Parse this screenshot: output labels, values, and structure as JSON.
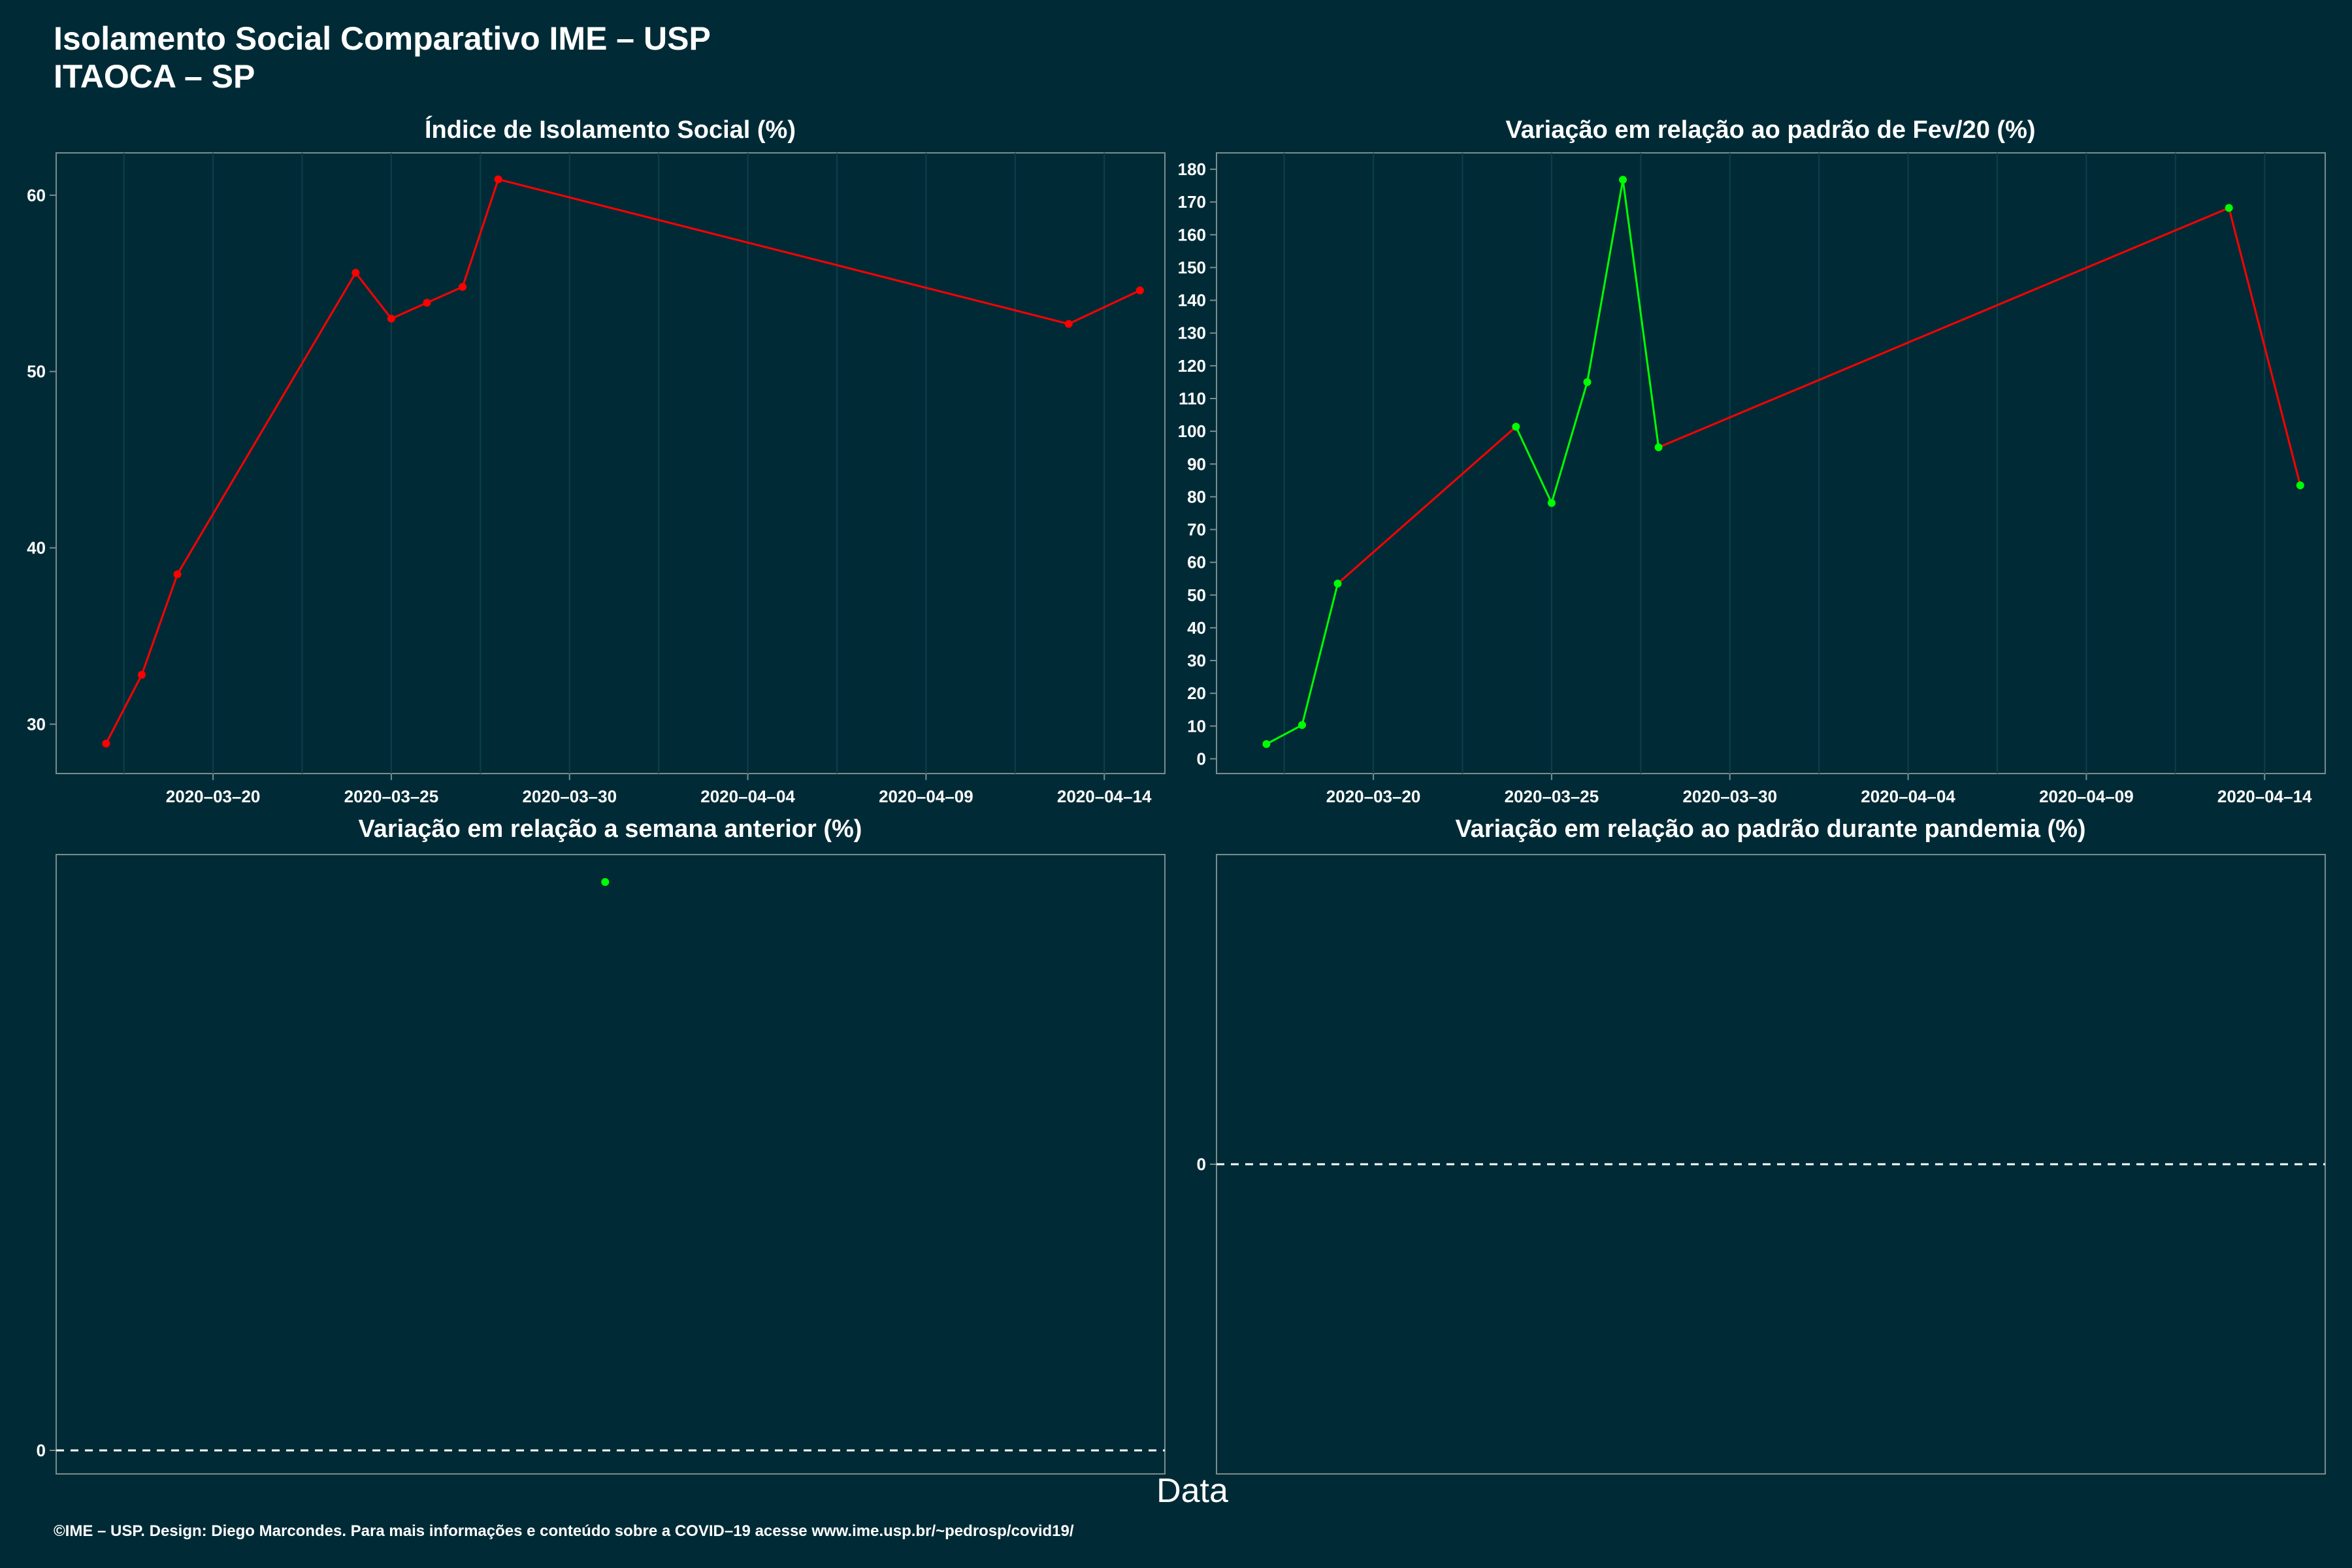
{
  "header": {
    "title_line1": "Isolamento Social Comparativo IME – USP",
    "title_line2": "ITAOCA – SP"
  },
  "x_axis_label": "Data",
  "footer": "©IME – USP. Design: Diego Marcondes. Para mais informações e conteúdo sobre a COVID–19 acesse www.ime.usp.br/~pedrosp/covid19/",
  "colors": {
    "background": "#002b36",
    "increase": "#00ff00",
    "decrease": "#ff0000",
    "grid": "#0d3f4a"
  },
  "chart_data": [
    {
      "id": "indice",
      "type": "line",
      "title": "Índice de Isolamento Social (%)",
      "x_ticks": [
        "2020-03-20",
        "2020-03-25",
        "2020-03-30",
        "2020-04-04",
        "2020-04-09",
        "2020-04-14"
      ],
      "y_ticks": [
        30,
        40,
        50,
        60
      ],
      "ylim": [
        27.2,
        62.4
      ],
      "x": [
        "2020-03-17",
        "2020-03-18",
        "2020-03-19",
        "2020-03-24",
        "2020-03-25",
        "2020-03-26",
        "2020-03-27",
        "2020-03-28",
        "2020-04-13",
        "2020-04-15"
      ],
      "values": [
        28.9,
        32.8,
        38.5,
        55.6,
        53.0,
        53.9,
        54.8,
        60.9,
        52.7,
        54.6
      ],
      "segment_colors": [
        "red",
        "red",
        "red",
        "red",
        "red",
        "red",
        "red",
        "red",
        "red"
      ],
      "point_colors": [
        "red",
        "red",
        "red",
        "red",
        "red",
        "red",
        "red",
        "red",
        "red",
        "red"
      ]
    },
    {
      "id": "fev",
      "type": "line",
      "title": "Variação em relação ao padrão de Fev/20 (%)",
      "x_ticks": [
        "2020-03-20",
        "2020-03-25",
        "2020-03-30",
        "2020-04-04",
        "2020-04-09",
        "2020-04-14"
      ],
      "y_ticks": [
        0,
        10,
        20,
        30,
        40,
        50,
        60,
        70,
        80,
        90,
        100,
        110,
        120,
        130,
        140,
        150,
        160,
        170,
        180
      ],
      "ylim": [
        -4.5,
        185
      ],
      "x": [
        "2020-03-17",
        "2020-03-18",
        "2020-03-19",
        "2020-03-24",
        "2020-03-25",
        "2020-03-26",
        "2020-03-27",
        "2020-03-28",
        "2020-04-13",
        "2020-04-15"
      ],
      "values": [
        4.5,
        10.3,
        53.5,
        101.4,
        78.1,
        115.0,
        176.8,
        95.1,
        168.2,
        83.5
      ],
      "segment_colors": [
        "green",
        "green",
        "red",
        "green",
        "green",
        "green",
        "green",
        "red",
        "red"
      ],
      "point_colors": [
        "green",
        "green",
        "green",
        "green",
        "green",
        "green",
        "green",
        "green",
        "green",
        "green"
      ]
    },
    {
      "id": "semana",
      "type": "scatter",
      "title": "Variação em relação a semana anterior (%)",
      "y_ticks": [
        0
      ],
      "reference_line": 0,
      "points": [
        {
          "x": "2020-03-31",
          "y_relative": "top",
          "color": "green"
        }
      ]
    },
    {
      "id": "pandemia",
      "type": "line",
      "title": "Variação em relação ao padrão durante pandemia (%)",
      "y_ticks": [
        0
      ],
      "reference_line": 0,
      "points": []
    }
  ]
}
